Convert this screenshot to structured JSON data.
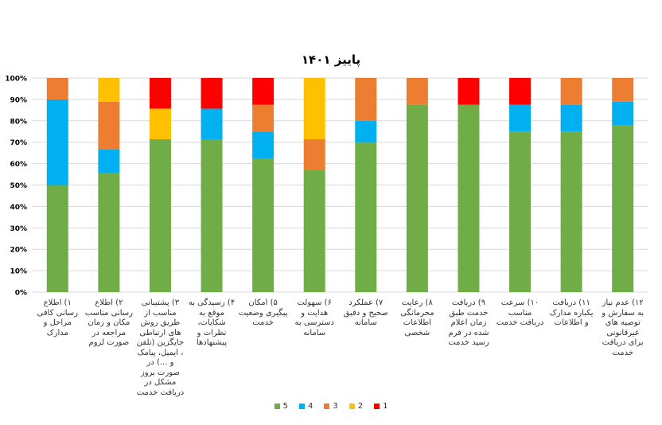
{
  "chart_data": {
    "type": "bar",
    "stacked": true,
    "title": "پاییز ۱۴۰۱",
    "ylim": [
      0,
      100
    ],
    "yticks": [
      "0%",
      "10%",
      "20%",
      "30%",
      "40%",
      "50%",
      "60%",
      "70%",
      "80%",
      "90%",
      "100%"
    ],
    "categories": [
      "۱) اطلاع رسانی کافی مراحل و مدارک",
      "۲) اطلاع رسانی مناسب مکان و زمان مراجعه در صورت لزوم",
      "۳) پشتیبانی مناسب از طریق روش های ارتباطی جایگزین (تلفن ، ایمیل، پیامک و ...) در صورت بروز مشکل در دریافت خدمت",
      "۴) رسیدگی به موقع به شکایات، نظرات و پیشنهادها",
      "۵) امکان پیگیری وضعیت خدمت",
      "۶) سهولت هدایت و دسترسی به سامانه",
      "۷) عملکرد صحیح و دقیق سامانه",
      "۸) رعایت محرمانگی اطلاعات شخصی",
      "۹) دریافت خدمت طبق زمان اعلام شده در فرم رسید خدمت",
      "۱۰) سرعت مناسب دریافت خدمت",
      "۱۱) دریافت یکباره مدارک و اطلاعات",
      "۱۲) عدم نیاز به سفارش و توصیه های غیرقانونی برای دریافت خدمت"
    ],
    "series": [
      {
        "name": "5",
        "color": "#70AD47",
        "values": [
          50,
          55.6,
          71.4,
          71.4,
          62.5,
          57.1,
          70,
          87.5,
          87.5,
          75,
          75,
          77.8
        ]
      },
      {
        "name": "4",
        "color": "#00B0F0",
        "values": [
          40,
          11.1,
          0,
          14.3,
          12.5,
          0,
          10,
          0,
          0,
          12.5,
          12.5,
          11.1
        ]
      },
      {
        "name": "3",
        "color": "#ED7D31",
        "values": [
          10,
          22.2,
          0,
          0,
          12.5,
          14.3,
          20,
          12.5,
          0,
          0,
          12.5,
          11.1
        ]
      },
      {
        "name": "2",
        "color": "#FFC000",
        "values": [
          0,
          11.1,
          14.3,
          0,
          0,
          28.6,
          0,
          0,
          0,
          0,
          0,
          0
        ]
      },
      {
        "name": "1",
        "color": "#FF0000",
        "values": [
          0,
          0,
          14.3,
          14.3,
          12.5,
          0,
          0,
          0,
          12.5,
          12.5,
          0,
          0
        ]
      }
    ],
    "legend_position": "bottom",
    "grid": true
  }
}
